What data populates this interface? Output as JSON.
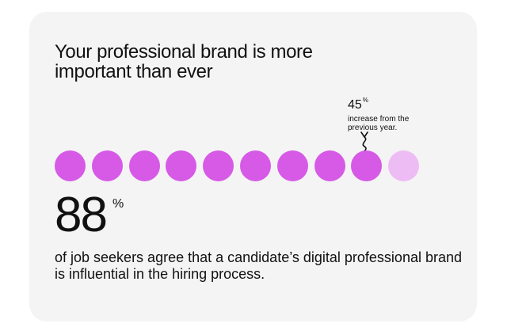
{
  "card": {
    "title": "Your professional brand is more important than ever",
    "callout": {
      "value": "45",
      "unit": "%",
      "text": "increase from the previous year."
    },
    "dots": {
      "total": 10,
      "filled": 9,
      "filled_color": "#d65ae6",
      "empty_color": "#eebcf5"
    },
    "stat": {
      "value": "88",
      "unit": "%"
    },
    "description": "of job seekers agree that a candidate’s digital professional brand is influential in the hiring process."
  }
}
